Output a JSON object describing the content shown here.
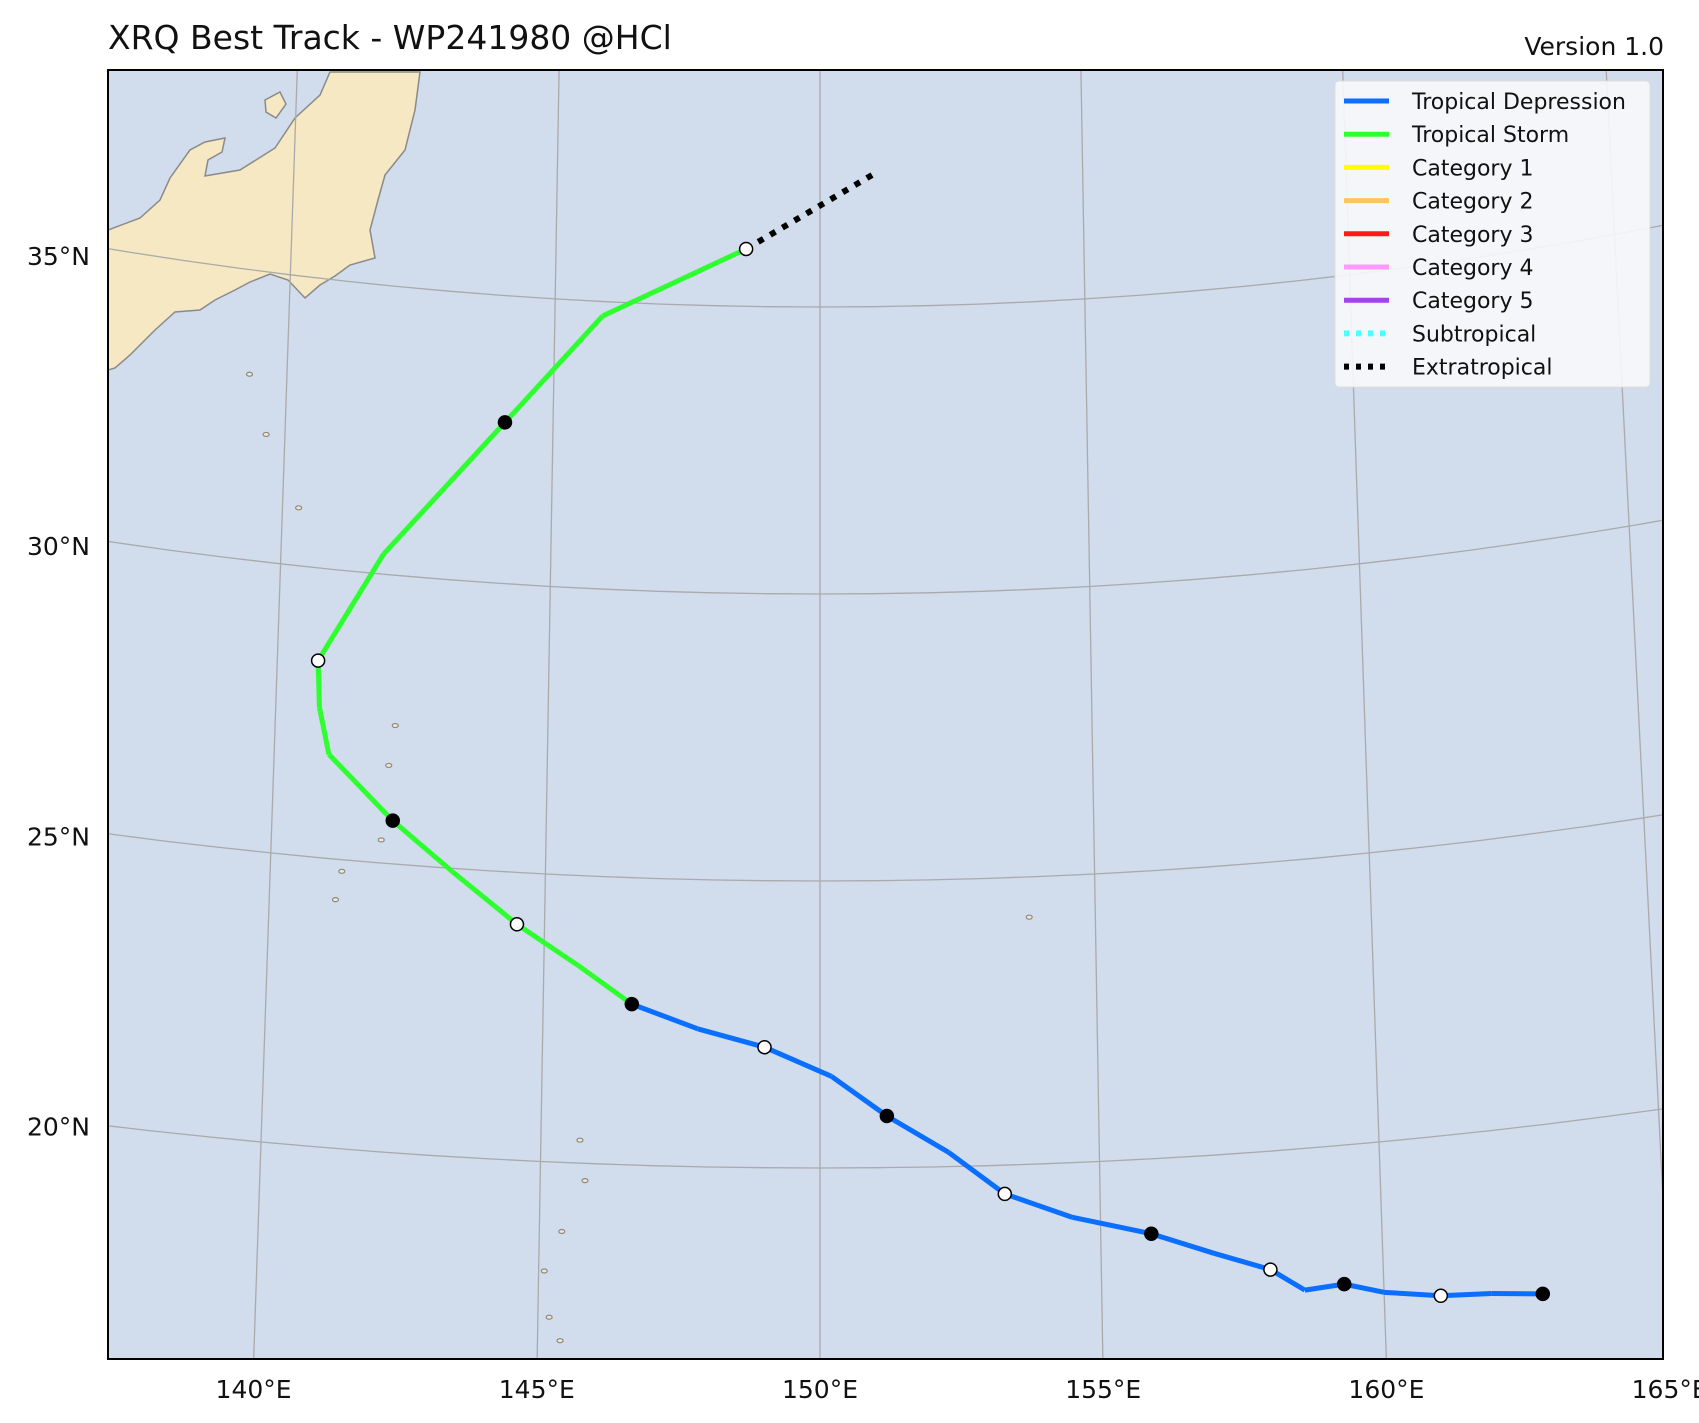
{
  "title": "XRQ Best Track - WP241980  @HCl",
  "version": "Version 1.0",
  "colors": {
    "ocean": "#d1dced",
    "land": "#f5e8c3",
    "coast": "#8a8a8a",
    "grid": "#aaaaaa",
    "td": "#0a6fff",
    "ts": "#2eff2e",
    "extratropical": "#000000"
  },
  "axes": {
    "lon_ticks": [
      "140°E",
      "145°E",
      "150°E",
      "155°E",
      "160°E",
      "165°E"
    ],
    "lat_ticks": [
      "35°N",
      "30°N",
      "25°N",
      "20°N"
    ]
  },
  "legend": {
    "position": "top-right",
    "items": [
      {
        "label": "Tropical Depression",
        "color": "#0a6fff",
        "style": "solid"
      },
      {
        "label": "Tropical Storm",
        "color": "#2eff2e",
        "style": "solid"
      },
      {
        "label": "Category 1",
        "color": "#ffff00",
        "style": "solid"
      },
      {
        "label": "Category 2",
        "color": "#ffc266",
        "style": "solid"
      },
      {
        "label": "Category 3",
        "color": "#ff1a1a",
        "style": "solid"
      },
      {
        "label": "Category 4",
        "color": "#ff99ff",
        "style": "solid"
      },
      {
        "label": "Category 5",
        "color": "#a642e6",
        "style": "solid"
      },
      {
        "label": "Subtropical",
        "color": "#4dffff",
        "style": "dotted"
      },
      {
        "label": "Extratropical",
        "color": "#000000",
        "style": "dotted"
      }
    ]
  },
  "chart_data": {
    "type": "map-track",
    "storm_id": "WP241980",
    "lon_range": [
      137.4,
      165.4
    ],
    "lat_range": [
      16.2,
      38.7
    ],
    "gridlines": true,
    "track": [
      {
        "lon": 162.8,
        "lat": 17.1,
        "stage": "TD",
        "marker": "filled"
      },
      {
        "lon": 161.9,
        "lat": 17.2,
        "stage": "TD"
      },
      {
        "lon": 161.0,
        "lat": 17.25,
        "stage": "TD",
        "marker": "open"
      },
      {
        "lon": 160.0,
        "lat": 17.4,
        "stage": "TD"
      },
      {
        "lon": 159.3,
        "lat": 17.6,
        "stage": "TD",
        "marker": "filled"
      },
      {
        "lon": 158.6,
        "lat": 17.55,
        "stage": "TD"
      },
      {
        "lon": 158.0,
        "lat": 17.95,
        "stage": "TD",
        "marker": "open"
      },
      {
        "lon": 157.0,
        "lat": 18.3,
        "stage": "TD"
      },
      {
        "lon": 155.9,
        "lat": 18.7,
        "stage": "TD",
        "marker": "filled"
      },
      {
        "lon": 154.5,
        "lat": 19.05,
        "stage": "TD"
      },
      {
        "lon": 153.3,
        "lat": 19.5,
        "stage": "TD",
        "marker": "open"
      },
      {
        "lon": 152.3,
        "lat": 20.25,
        "stage": "TD"
      },
      {
        "lon": 151.2,
        "lat": 20.9,
        "stage": "TD",
        "marker": "filled"
      },
      {
        "lon": 150.2,
        "lat": 21.6,
        "stage": "TD"
      },
      {
        "lon": 149.0,
        "lat": 22.1,
        "stage": "TD",
        "marker": "open"
      },
      {
        "lon": 147.8,
        "lat": 22.4,
        "stage": "TD"
      },
      {
        "lon": 146.6,
        "lat": 22.8,
        "stage": "TS",
        "marker": "filled"
      },
      {
        "lon": 145.6,
        "lat": 23.45,
        "stage": "TS"
      },
      {
        "lon": 144.5,
        "lat": 24.1,
        "stage": "TS",
        "marker": "open"
      },
      {
        "lon": 143.3,
        "lat": 24.95,
        "stage": "TS"
      },
      {
        "lon": 142.2,
        "lat": 25.75,
        "stage": "TS",
        "marker": "filled"
      },
      {
        "lon": 141.0,
        "lat": 26.8,
        "stage": "TS"
      },
      {
        "lon": 140.8,
        "lat": 27.6,
        "stage": "TS"
      },
      {
        "lon": 140.75,
        "lat": 28.4,
        "stage": "TS",
        "marker": "open"
      },
      {
        "lon": 141.9,
        "lat": 30.35,
        "stage": "TS"
      },
      {
        "lon": 144.1,
        "lat": 32.8,
        "stage": "TS",
        "marker": "filled"
      },
      {
        "lon": 145.9,
        "lat": 34.75,
        "stage": "TS"
      },
      {
        "lon": 148.6,
        "lat": 36.0,
        "stage": "EX",
        "marker": "open"
      },
      {
        "lon": 151.1,
        "lat": 37.35,
        "stage": "EX"
      }
    ]
  }
}
